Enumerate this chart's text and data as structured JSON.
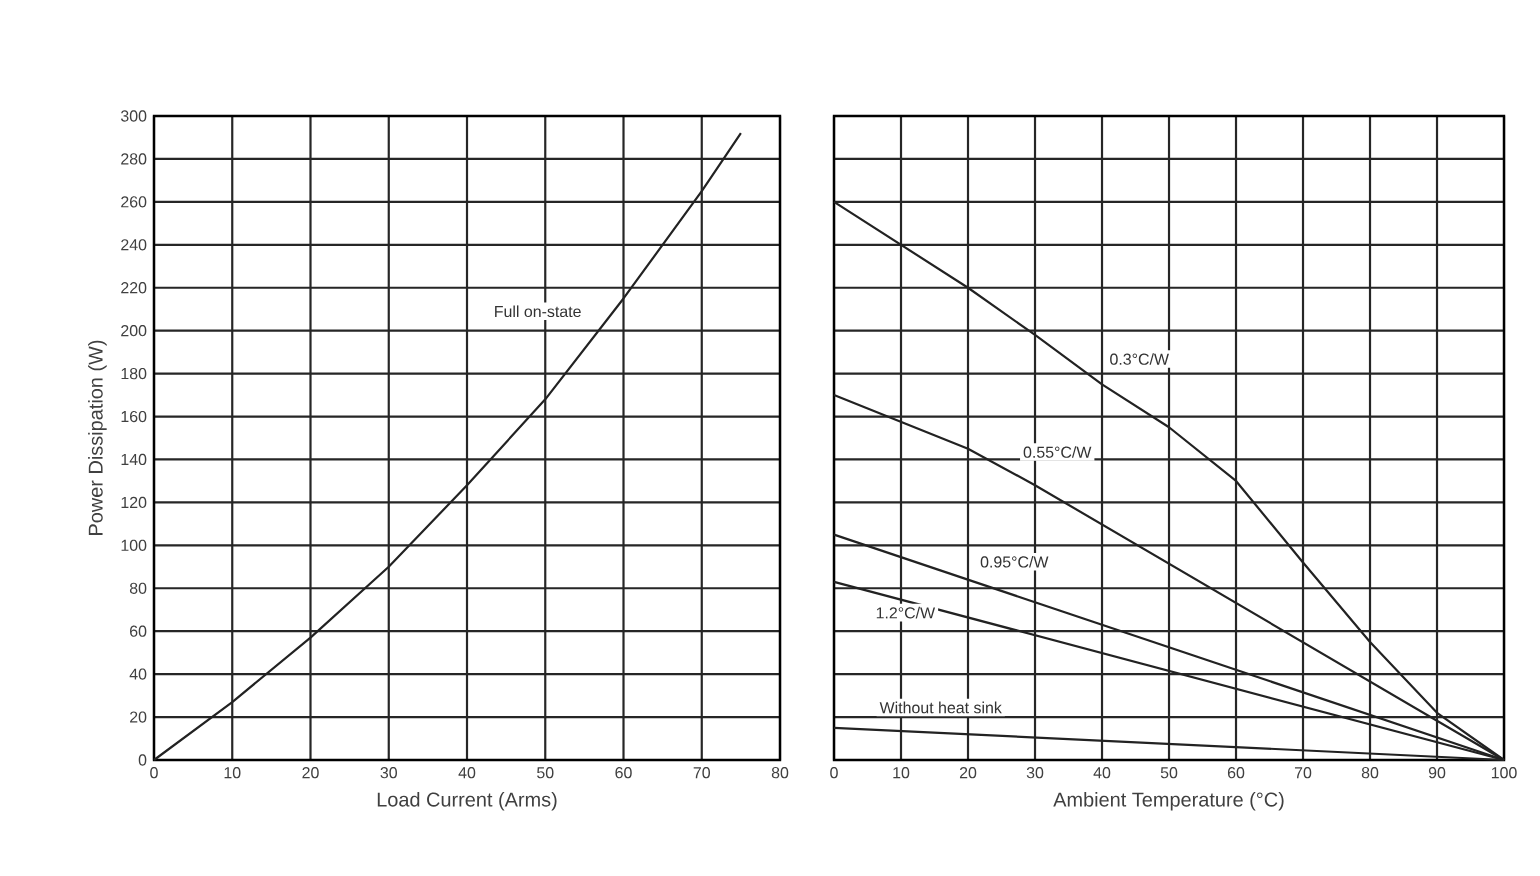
{
  "chart_data": [
    {
      "type": "line",
      "xlabel": "Load Current (Arms)",
      "ylabel": "Power Dissipation (W)",
      "xlim": [
        0,
        80
      ],
      "xticks": [
        0,
        10,
        20,
        30,
        40,
        50,
        60,
        70,
        80
      ],
      "ylim": [
        0,
        300
      ],
      "yticks": [
        0,
        20,
        40,
        60,
        80,
        100,
        120,
        140,
        160,
        180,
        200,
        220,
        240,
        260,
        280,
        300
      ],
      "grid": true,
      "series": [
        {
          "name": "Full on-state",
          "color": "#222222",
          "x": [
            0,
            10,
            20,
            30,
            40,
            50,
            60,
            70,
            75
          ],
          "values": [
            0,
            27,
            57,
            90,
            128,
            168,
            215,
            265,
            292
          ]
        }
      ]
    },
    {
      "type": "line",
      "xlabel": "Ambient Temperature (°C)",
      "xlim": [
        0,
        100
      ],
      "xticks": [
        0,
        10,
        20,
        30,
        40,
        50,
        60,
        70,
        80,
        90,
        100
      ],
      "ylim": [
        0,
        300
      ],
      "yticks": [
        0,
        20,
        40,
        60,
        80,
        100,
        120,
        140,
        160,
        180,
        200,
        220,
        240,
        260,
        280,
        300
      ],
      "tick_labels": "x",
      "grid": true,
      "series": [
        {
          "name": "0.3°C/W",
          "color": "#222222",
          "x": [
            0,
            20,
            30,
            40,
            50,
            60,
            70,
            80,
            90,
            100
          ],
          "values": [
            260,
            220,
            198,
            175,
            155,
            130,
            92,
            55,
            22,
            0
          ]
        },
        {
          "name": "0.55°C/W",
          "color": "#222222",
          "x": [
            0,
            20,
            30,
            100
          ],
          "values": [
            170,
            145,
            128,
            0
          ]
        },
        {
          "name": "0.95°C/W",
          "color": "#222222",
          "x": [
            0,
            100
          ],
          "values": [
            105,
            0
          ]
        },
        {
          "name": "1.2°C/W",
          "color": "#222222",
          "x": [
            0,
            100
          ],
          "values": [
            83,
            0
          ]
        },
        {
          "name": "Without heat sink",
          "color": "#222222",
          "x": [
            0,
            100
          ],
          "values": [
            15,
            0
          ]
        }
      ]
    }
  ]
}
